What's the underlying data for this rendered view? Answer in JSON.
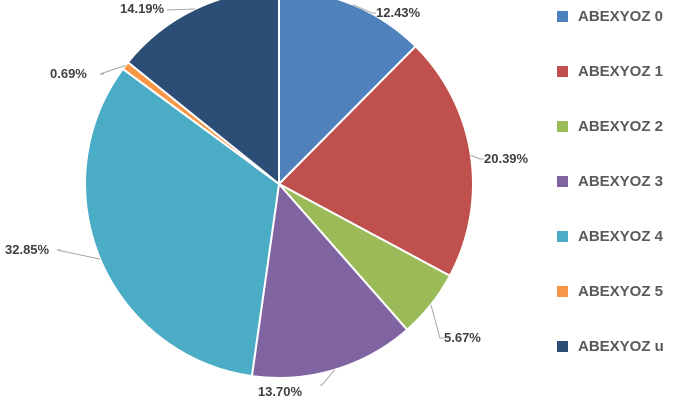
{
  "chart_data": {
    "type": "pie",
    "title": "",
    "categories": [
      "ABEXYOZ 0",
      "ABEXYOZ 1",
      "ABEXYOZ 2",
      "ABEXYOZ 3",
      "ABEXYOZ 4",
      "ABEXYOZ 5",
      "ABEXYOZ u"
    ],
    "values": [
      12.43,
      20.39,
      5.67,
      13.7,
      32.85,
      0.69,
      14.19
    ],
    "labels": [
      "12.43%",
      "20.39%",
      "5.67%",
      "13.70%",
      "32.85%",
      "0.69%",
      "14.19%"
    ],
    "colors": [
      "#4F81BD",
      "#C0504D",
      "#9BBB59",
      "#8064A2",
      "#4BACC6",
      "#F79646",
      "#2C4D75"
    ],
    "legend": "right"
  }
}
